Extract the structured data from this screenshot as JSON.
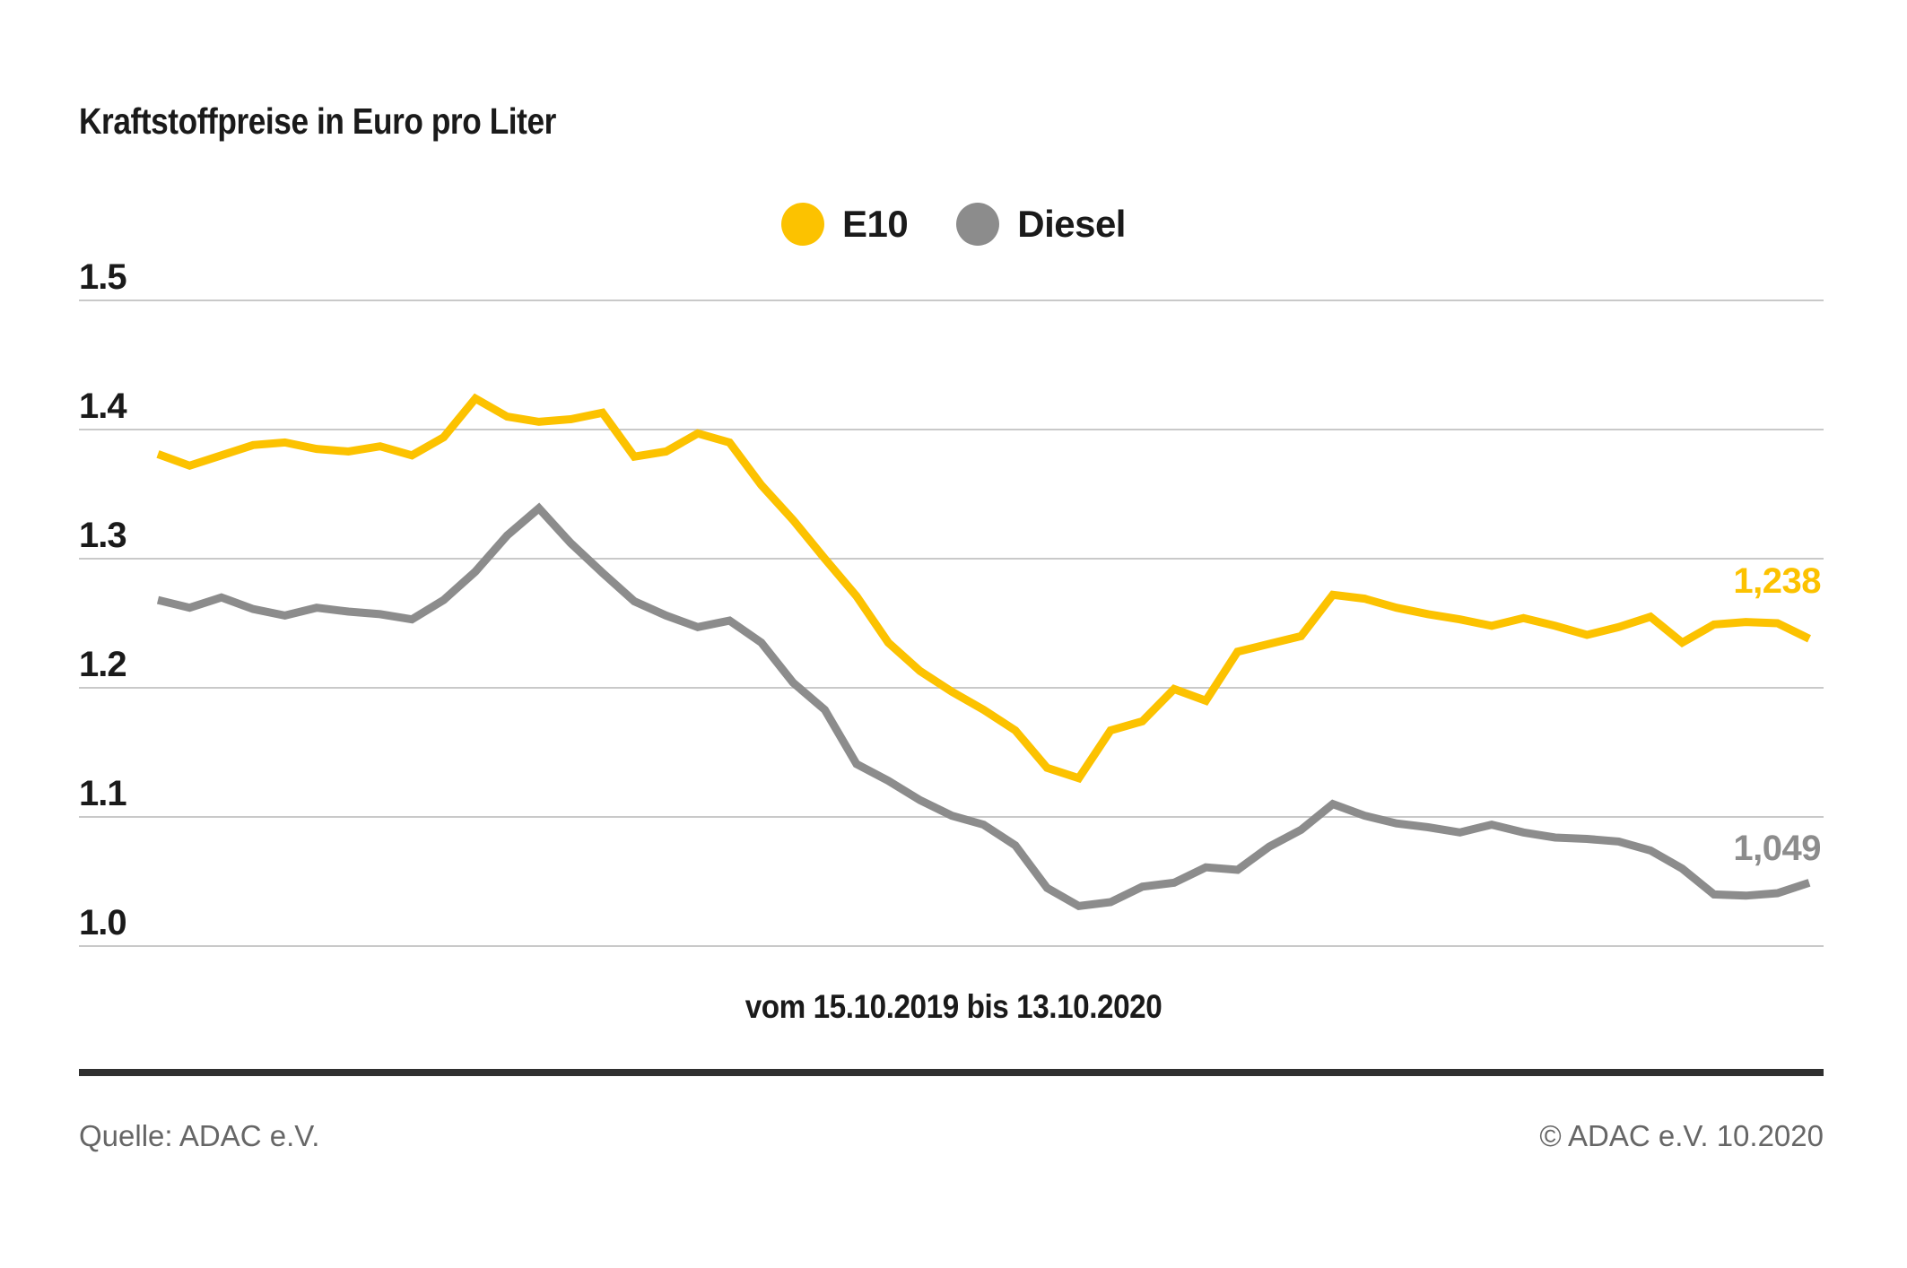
{
  "title": "Kraftstoffpreise in Euro pro Liter",
  "subtitle": "vom 15.10.2019 bis 13.10.2020",
  "footer": {
    "source": "Quelle: ADAC e.V.",
    "copyright": "© ADAC e.V. 10.2020"
  },
  "chart_data": {
    "type": "line",
    "title": "Kraftstoffpreise in Euro pro Liter",
    "xlabel": "vom 15.10.2019 bis 13.10.2020",
    "x_start": "15.10.2019",
    "x_end": "13.10.2020",
    "x_step": "weekly",
    "n_points": 53,
    "ylim": [
      1.0,
      1.5
    ],
    "yticks": [
      "1.5",
      "1.4",
      "1.3",
      "1.2",
      "1.1",
      "1.0"
    ],
    "ytick_values": [
      1.5,
      1.4,
      1.3,
      1.2,
      1.1,
      1.0
    ],
    "grid": "horizontal-only",
    "legend_position": "top-center",
    "colors": {
      "e10": "#FCC200",
      "diesel": "#8C8C8C",
      "gridline": "#C9C9C9",
      "text": "#1A1A1A",
      "muted_text": "#666666",
      "divider": "#303030"
    },
    "series": [
      {
        "name": "E10",
        "color": "#FCC200",
        "end_label": "1,238",
        "end_value": 1.238,
        "values": [
          1.381,
          1.372,
          1.38,
          1.388,
          1.39,
          1.385,
          1.383,
          1.387,
          1.38,
          1.394,
          1.424,
          1.41,
          1.406,
          1.408,
          1.413,
          1.379,
          1.383,
          1.397,
          1.39,
          1.357,
          1.33,
          1.3,
          1.271,
          1.235,
          1.213,
          1.197,
          1.183,
          1.167,
          1.138,
          1.13,
          1.167,
          1.174,
          1.199,
          1.19,
          1.228,
          1.234,
          1.24,
          1.272,
          1.269,
          1.262,
          1.257,
          1.253,
          1.248,
          1.254,
          1.248,
          1.241,
          1.247,
          1.255,
          1.235,
          1.249,
          1.251,
          1.25,
          1.238
        ]
      },
      {
        "name": "Diesel",
        "color": "#8C8C8C",
        "end_label": "1,049",
        "end_value": 1.049,
        "values": [
          1.268,
          1.262,
          1.27,
          1.261,
          1.256,
          1.262,
          1.259,
          1.257,
          1.253,
          1.268,
          1.29,
          1.318,
          1.339,
          1.312,
          1.289,
          1.267,
          1.256,
          1.247,
          1.252,
          1.235,
          1.204,
          1.183,
          1.141,
          1.128,
          1.113,
          1.101,
          1.094,
          1.078,
          1.045,
          1.031,
          1.034,
          1.046,
          1.049,
          1.061,
          1.059,
          1.077,
          1.09,
          1.11,
          1.101,
          1.095,
          1.092,
          1.088,
          1.094,
          1.088,
          1.084,
          1.083,
          1.081,
          1.074,
          1.06,
          1.04,
          1.039,
          1.041,
          1.049
        ]
      }
    ]
  }
}
